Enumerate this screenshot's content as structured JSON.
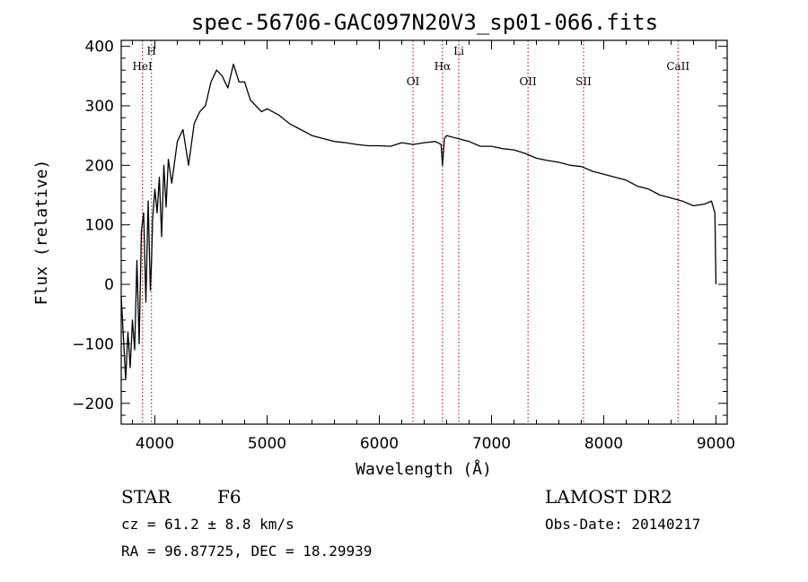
{
  "chart_data": {
    "type": "line",
    "title": "spec-56706-GAC097N20V3_sp01-066.fits",
    "xlabel": "Wavelength (Å)",
    "ylabel": "Flux (relative)",
    "xlim": [
      3700,
      9100
    ],
    "ylim": [
      -235,
      410
    ],
    "xticks": [
      4000,
      5000,
      6000,
      7000,
      8000,
      9000
    ],
    "yticks": [
      -200,
      -100,
      0,
      100,
      200,
      300,
      400
    ],
    "grid": false,
    "series": [
      {
        "x": [
          3700,
          3720,
          3740,
          3760,
          3780,
          3800,
          3820,
          3840,
          3860,
          3880,
          3900,
          3920,
          3940,
          3960,
          3970,
          3980,
          4000,
          4020,
          4040,
          4060,
          4080,
          4100,
          4120,
          4150,
          4200,
          4250,
          4300,
          4350,
          4400,
          4450,
          4500,
          4550,
          4600,
          4650,
          4700,
          4750,
          4800,
          4850,
          4900,
          4950,
          5000,
          5100,
          5200,
          5300,
          5400,
          5500,
          5600,
          5700,
          5800,
          5900,
          6000,
          6100,
          6200,
          6300,
          6400,
          6500,
          6550,
          6563,
          6580,
          6600,
          6700,
          6800,
          6900,
          7000,
          7100,
          7200,
          7300,
          7400,
          7500,
          7600,
          7700,
          7800,
          7900,
          8000,
          8100,
          8200,
          8300,
          8400,
          8500,
          8600,
          8700,
          8800,
          8900,
          8960,
          8990,
          9000
        ],
        "y": [
          -20,
          -90,
          -160,
          -80,
          -140,
          -60,
          -110,
          40,
          -100,
          90,
          120,
          -30,
          140,
          -10,
          40,
          110,
          160,
          120,
          180,
          80,
          200,
          130,
          210,
          170,
          240,
          260,
          200,
          270,
          290,
          300,
          340,
          360,
          350,
          330,
          370,
          340,
          340,
          310,
          300,
          290,
          295,
          285,
          270,
          260,
          250,
          245,
          240,
          238,
          235,
          233,
          233,
          232,
          238,
          235,
          238,
          240,
          235,
          200,
          245,
          250,
          245,
          240,
          232,
          232,
          228,
          226,
          220,
          212,
          208,
          205,
          200,
          198,
          190,
          185,
          180,
          175,
          165,
          160,
          150,
          145,
          140,
          132,
          135,
          140,
          120,
          0
        ]
      }
    ],
    "annotations": [
      {
        "label": "HeI",
        "x": 3889
      },
      {
        "label": "H",
        "x": 3970
      },
      {
        "label": "OI",
        "x": 6300
      },
      {
        "label": "Hα",
        "x": 6563
      },
      {
        "label": "Li",
        "x": 6708
      },
      {
        "label": "OII",
        "x": 7325
      },
      {
        "label": "SII",
        "x": 7820
      },
      {
        "label": "CaII",
        "x": 8662
      }
    ]
  },
  "info": {
    "object_class": "STAR",
    "subclass": "F6",
    "survey": "LAMOST DR2",
    "cz": "cz = 61.2 ± 8.8 km/s",
    "obs_date": "Obs-Date: 20140217",
    "radec": "RA =  96.87725, DEC =  18.29939"
  },
  "colors": {
    "spectrum": "#000000",
    "lines": "#aa0000"
  }
}
